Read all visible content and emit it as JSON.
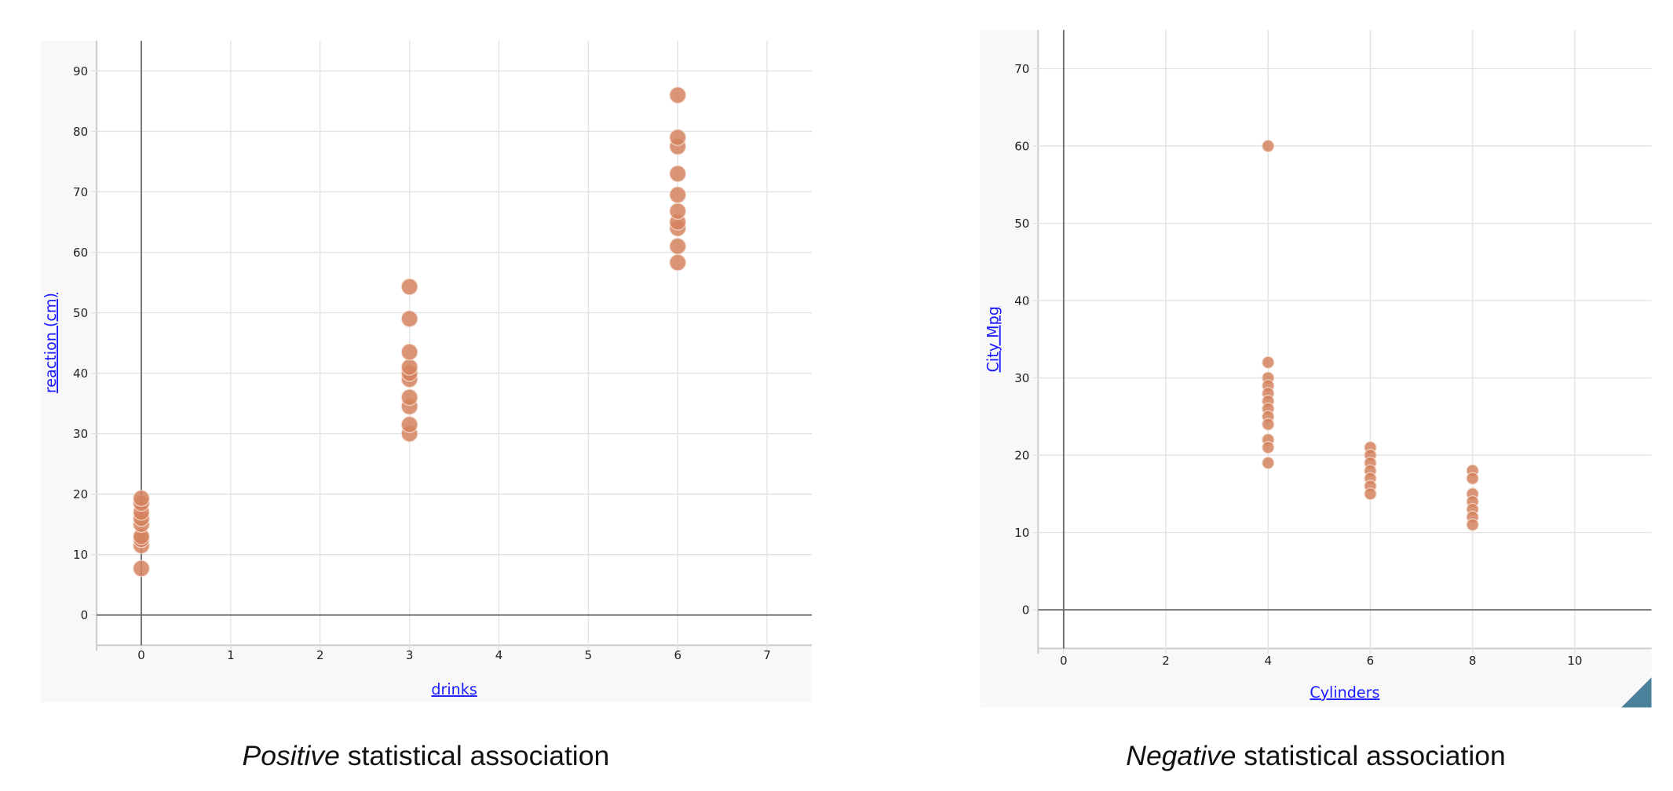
{
  "colors": {
    "point": "#d4825e",
    "axis_label": "#1a1aff",
    "grid": "#e2e2e2",
    "axis": "#666666",
    "panel": "#f8f8f8",
    "resize_handle": "#4a8099"
  },
  "chart_data": [
    {
      "type": "scatter",
      "title": "",
      "xlabel": "drinks",
      "ylabel": "reaction (cm)",
      "xlim": [
        -0.5,
        7.5
      ],
      "ylim": [
        -5,
        95
      ],
      "xticks": [
        0,
        1,
        2,
        3,
        4,
        5,
        6,
        7
      ],
      "yticks": [
        0,
        10,
        20,
        30,
        40,
        50,
        60,
        70,
        80,
        90
      ],
      "grid": true,
      "points": [
        {
          "x": 0,
          "y": 7.7
        },
        {
          "x": 0,
          "y": 11.5
        },
        {
          "x": 0,
          "y": 12.5
        },
        {
          "x": 0,
          "y": 13
        },
        {
          "x": 0,
          "y": 15
        },
        {
          "x": 0,
          "y": 16
        },
        {
          "x": 0,
          "y": 17
        },
        {
          "x": 0,
          "y": 18.5
        },
        {
          "x": 0,
          "y": 19.3
        },
        {
          "x": 3,
          "y": 30
        },
        {
          "x": 3,
          "y": 31.5
        },
        {
          "x": 3,
          "y": 34.5
        },
        {
          "x": 3,
          "y": 36
        },
        {
          "x": 3,
          "y": 39
        },
        {
          "x": 3,
          "y": 40
        },
        {
          "x": 3,
          "y": 41
        },
        {
          "x": 3,
          "y": 43.5
        },
        {
          "x": 3,
          "y": 49
        },
        {
          "x": 3,
          "y": 54.3
        },
        {
          "x": 6,
          "y": 58.3
        },
        {
          "x": 6,
          "y": 61
        },
        {
          "x": 6,
          "y": 64
        },
        {
          "x": 6,
          "y": 65
        },
        {
          "x": 6,
          "y": 66.8
        },
        {
          "x": 6,
          "y": 69.5
        },
        {
          "x": 6,
          "y": 73
        },
        {
          "x": 6,
          "y": 77.5
        },
        {
          "x": 6,
          "y": 79
        },
        {
          "x": 6,
          "y": 86
        }
      ],
      "caption_em": "Positive",
      "caption_rest": " statistical association"
    },
    {
      "type": "scatter",
      "title": "",
      "xlabel": "Cylinders",
      "ylabel": "City Mpg",
      "xlim": [
        -0.5,
        11.5
      ],
      "ylim": [
        -5,
        75
      ],
      "xticks": [
        0,
        2,
        4,
        6,
        8,
        10
      ],
      "yticks": [
        0,
        10,
        20,
        30,
        40,
        50,
        60,
        70
      ],
      "grid": true,
      "points": [
        {
          "x": 4,
          "y": 60
        },
        {
          "x": 4,
          "y": 32
        },
        {
          "x": 4,
          "y": 30
        },
        {
          "x": 4,
          "y": 29
        },
        {
          "x": 4,
          "y": 28
        },
        {
          "x": 4,
          "y": 27
        },
        {
          "x": 4,
          "y": 26
        },
        {
          "x": 4,
          "y": 25
        },
        {
          "x": 4,
          "y": 24
        },
        {
          "x": 4,
          "y": 22
        },
        {
          "x": 4,
          "y": 21
        },
        {
          "x": 4,
          "y": 19
        },
        {
          "x": 6,
          "y": 21
        },
        {
          "x": 6,
          "y": 20
        },
        {
          "x": 6,
          "y": 19
        },
        {
          "x": 6,
          "y": 18
        },
        {
          "x": 6,
          "y": 17
        },
        {
          "x": 6,
          "y": 16
        },
        {
          "x": 6,
          "y": 15
        },
        {
          "x": 8,
          "y": 18
        },
        {
          "x": 8,
          "y": 17
        },
        {
          "x": 8,
          "y": 15
        },
        {
          "x": 8,
          "y": 14
        },
        {
          "x": 8,
          "y": 13
        },
        {
          "x": 8,
          "y": 12
        },
        {
          "x": 8,
          "y": 11
        }
      ],
      "caption_em": "Negative",
      "caption_rest": " statistical association"
    }
  ]
}
